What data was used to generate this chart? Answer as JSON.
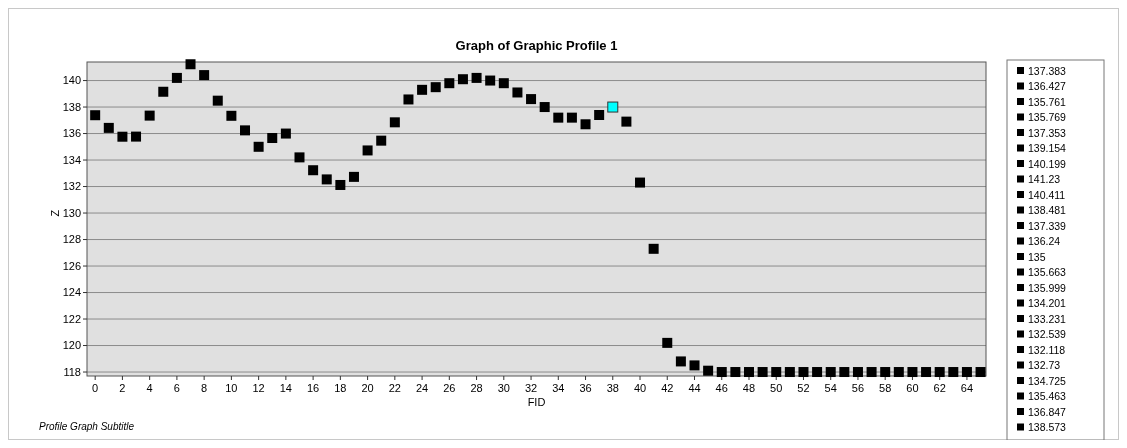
{
  "chart_data": {
    "type": "scatter",
    "title": "Graph of Graphic Profile 1",
    "subtitle": "Profile Graph Subtitle",
    "xlabel": "FID",
    "ylabel": "Z",
    "xlim": [
      -0.6,
      65.4
    ],
    "xticks": [
      0,
      2,
      4,
      6,
      8,
      10,
      12,
      14,
      16,
      18,
      20,
      22,
      24,
      26,
      28,
      30,
      32,
      34,
      36,
      38,
      40,
      42,
      44,
      46,
      48,
      50,
      52,
      54,
      56,
      58,
      60,
      62,
      64
    ],
    "ylim": [
      117.7,
      141.4
    ],
    "yticks": [
      118,
      120,
      122,
      124,
      126,
      128,
      130,
      132,
      134,
      136,
      138,
      140
    ],
    "grid": "y",
    "legend": "right",
    "marker": "square",
    "series": [
      {
        "name": "137.383",
        "color": "#000000",
        "x": [
          0
        ],
        "values": [
          137.383
        ]
      },
      {
        "name": "136.427",
        "color": "#000000",
        "x": [
          1
        ],
        "values": [
          136.427
        ]
      },
      {
        "name": "135.761",
        "color": "#000000",
        "x": [
          2
        ],
        "values": [
          135.761
        ]
      },
      {
        "name": "135.769",
        "color": "#000000",
        "x": [
          3
        ],
        "values": [
          135.769
        ]
      },
      {
        "name": "137.353",
        "color": "#000000",
        "x": [
          4
        ],
        "values": [
          137.353
        ]
      },
      {
        "name": "139.154",
        "color": "#000000",
        "x": [
          5
        ],
        "values": [
          139.154
        ]
      },
      {
        "name": "140.199",
        "color": "#000000",
        "x": [
          6
        ],
        "values": [
          140.199
        ]
      },
      {
        "name": "141.23",
        "color": "#000000",
        "x": [
          7
        ],
        "values": [
          141.23
        ]
      },
      {
        "name": "140.411",
        "color": "#000000",
        "x": [
          8
        ],
        "values": [
          140.411
        ]
      },
      {
        "name": "138.481",
        "color": "#000000",
        "x": [
          9
        ],
        "values": [
          138.481
        ]
      },
      {
        "name": "137.339",
        "color": "#000000",
        "x": [
          10
        ],
        "values": [
          137.339
        ]
      },
      {
        "name": "136.24",
        "color": "#000000",
        "x": [
          11
        ],
        "values": [
          136.24
        ]
      },
      {
        "name": "135",
        "color": "#000000",
        "x": [
          12
        ],
        "values": [
          135
        ]
      },
      {
        "name": "135.663",
        "color": "#000000",
        "x": [
          13
        ],
        "values": [
          135.663
        ]
      },
      {
        "name": "135.999",
        "color": "#000000",
        "x": [
          14
        ],
        "values": [
          135.999
        ]
      },
      {
        "name": "134.201",
        "color": "#000000",
        "x": [
          15
        ],
        "values": [
          134.201
        ]
      },
      {
        "name": "133.231",
        "color": "#000000",
        "x": [
          16
        ],
        "values": [
          133.231
        ]
      },
      {
        "name": "132.539",
        "color": "#000000",
        "x": [
          17
        ],
        "values": [
          132.539
        ]
      },
      {
        "name": "132.118",
        "color": "#000000",
        "x": [
          18
        ],
        "values": [
          132.118
        ]
      },
      {
        "name": "132.73",
        "color": "#000000",
        "x": [
          19
        ],
        "values": [
          132.73
        ]
      },
      {
        "name": "134.725",
        "color": "#000000",
        "x": [
          20
        ],
        "values": [
          134.725
        ]
      },
      {
        "name": "135.463",
        "color": "#000000",
        "x": [
          21
        ],
        "values": [
          135.463
        ]
      },
      {
        "name": "136.847",
        "color": "#000000",
        "x": [
          22
        ],
        "values": [
          136.847
        ]
      },
      {
        "name": "138.573",
        "color": "#000000",
        "x": [
          23
        ],
        "values": [
          138.573
        ]
      },
      {
        "color": "#000000",
        "x": [
          24
        ],
        "values": [
          139.3
        ]
      },
      {
        "color": "#000000",
        "x": [
          25
        ],
        "values": [
          139.5
        ]
      },
      {
        "color": "#000000",
        "x": [
          26
        ],
        "values": [
          139.8
        ]
      },
      {
        "color": "#000000",
        "x": [
          27
        ],
        "values": [
          140.1
        ]
      },
      {
        "color": "#000000",
        "x": [
          28
        ],
        "values": [
          140.2
        ]
      },
      {
        "color": "#000000",
        "x": [
          29
        ],
        "values": [
          140.0
        ]
      },
      {
        "color": "#000000",
        "x": [
          30
        ],
        "values": [
          139.8
        ]
      },
      {
        "color": "#000000",
        "x": [
          31
        ],
        "values": [
          139.1
        ]
      },
      {
        "color": "#000000",
        "x": [
          32
        ],
        "values": [
          138.6
        ]
      },
      {
        "color": "#000000",
        "x": [
          33
        ],
        "values": [
          138.0
        ]
      },
      {
        "color": "#000000",
        "x": [
          34
        ],
        "values": [
          137.2
        ]
      },
      {
        "color": "#000000",
        "x": [
          35
        ],
        "values": [
          137.2
        ]
      },
      {
        "color": "#000000",
        "x": [
          36
        ],
        "values": [
          136.7
        ]
      },
      {
        "color": "#000000",
        "x": [
          37
        ],
        "values": [
          137.4
        ]
      },
      {
        "color": "#00ffff",
        "x": [
          38
        ],
        "values": [
          138.0
        ]
      },
      {
        "color": "#000000",
        "x": [
          39
        ],
        "values": [
          136.9
        ]
      },
      {
        "color": "#000000",
        "x": [
          40
        ],
        "values": [
          132.3
        ]
      },
      {
        "color": "#000000",
        "x": [
          41
        ],
        "values": [
          127.3
        ]
      },
      {
        "color": "#000000",
        "x": [
          42
        ],
        "values": [
          120.2
        ]
      },
      {
        "color": "#000000",
        "x": [
          43
        ],
        "values": [
          118.8
        ]
      },
      {
        "color": "#000000",
        "x": [
          44
        ],
        "values": [
          118.5
        ]
      },
      {
        "color": "#000000",
        "x": [
          45
        ],
        "values": [
          118.1
        ]
      },
      {
        "color": "#000000",
        "x": [
          46
        ],
        "values": [
          118.0
        ]
      },
      {
        "color": "#000000",
        "x": [
          47
        ],
        "values": [
          118.0
        ]
      },
      {
        "color": "#000000",
        "x": [
          48
        ],
        "values": [
          118.0
        ]
      },
      {
        "color": "#000000",
        "x": [
          49
        ],
        "values": [
          118.0
        ]
      },
      {
        "color": "#000000",
        "x": [
          50
        ],
        "values": [
          118.0
        ]
      },
      {
        "color": "#000000",
        "x": [
          51
        ],
        "values": [
          118.0
        ]
      },
      {
        "color": "#000000",
        "x": [
          52
        ],
        "values": [
          118.0
        ]
      },
      {
        "color": "#000000",
        "x": [
          53
        ],
        "values": [
          118.0
        ]
      },
      {
        "color": "#000000",
        "x": [
          54
        ],
        "values": [
          118.0
        ]
      },
      {
        "color": "#000000",
        "x": [
          55
        ],
        "values": [
          118.0
        ]
      },
      {
        "color": "#000000",
        "x": [
          56
        ],
        "values": [
          118.0
        ]
      },
      {
        "color": "#000000",
        "x": [
          57
        ],
        "values": [
          118.0
        ]
      },
      {
        "color": "#000000",
        "x": [
          58
        ],
        "values": [
          118.0
        ]
      },
      {
        "color": "#000000",
        "x": [
          59
        ],
        "values": [
          118.0
        ]
      },
      {
        "color": "#000000",
        "x": [
          60
        ],
        "values": [
          118.0
        ]
      },
      {
        "color": "#000000",
        "x": [
          61
        ],
        "values": [
          118.0
        ]
      },
      {
        "color": "#000000",
        "x": [
          62
        ],
        "values": [
          118.0
        ]
      },
      {
        "color": "#000000",
        "x": [
          63
        ],
        "values": [
          118.0
        ]
      },
      {
        "color": "#000000",
        "x": [
          64
        ],
        "values": [
          118.0
        ]
      },
      {
        "color": "#000000",
        "x": [
          65
        ],
        "values": [
          118.0
        ]
      }
    ]
  }
}
